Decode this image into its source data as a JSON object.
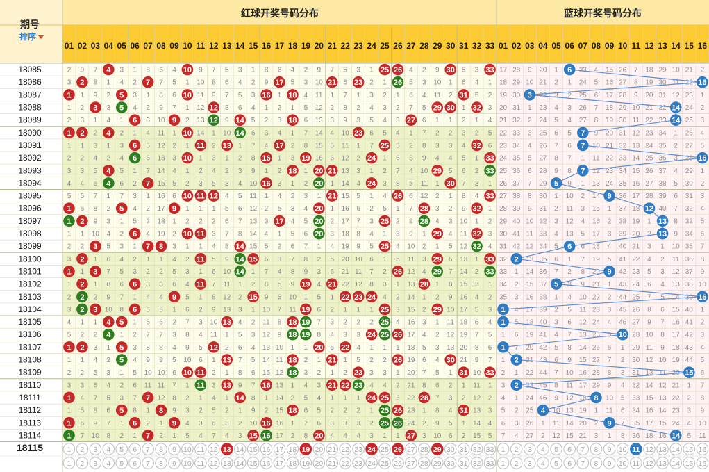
{
  "header": {
    "issue_label": "期号",
    "sort_label": "排序",
    "red_title": "红球开奖号码分布",
    "blue_title": "蓝球开奖号码分布"
  },
  "red_numbers": [
    "01",
    "02",
    "03",
    "04",
    "05",
    "06",
    "07",
    "08",
    "09",
    "10",
    "11",
    "12",
    "13",
    "14",
    "15",
    "16",
    "17",
    "18",
    "19",
    "20",
    "21",
    "22",
    "23",
    "24",
    "25",
    "26",
    "27",
    "28",
    "29",
    "30",
    "31",
    "32",
    "33"
  ],
  "blue_numbers": [
    "01",
    "02",
    "03",
    "04",
    "05",
    "06",
    "07",
    "08",
    "09",
    "10",
    "11",
    "12",
    "13",
    "14",
    "15",
    "16"
  ],
  "colors": {
    "header_bg": "#fde9a3",
    "header_row": "#fccb33",
    "red_ball": "#c62828",
    "green_ball": "#2e7d1e",
    "blue_ball": "#2e7bc4",
    "red_zone_light": "#fdfbea",
    "red_zone_dark": "#eef2c9",
    "blue_zone": "#fff2f2",
    "grid": "#d9d9b8",
    "omit_text": "#8c8c8c"
  },
  "draws": [
    {
      "issue": "18085",
      "red": [
        4,
        10,
        25,
        26,
        30,
        33
      ],
      "blue": 6
    },
    {
      "issue": "18086",
      "red": [
        2,
        7,
        17,
        21,
        23,
        26
      ],
      "blue": 16
    },
    {
      "issue": "18087",
      "red": [
        1,
        5,
        10,
        16,
        18,
        31
      ],
      "blue": 3
    },
    {
      "issue": "18088",
      "red": [
        3,
        5,
        12,
        29,
        30,
        32
      ],
      "blue": 14
    },
    {
      "issue": "18089",
      "red": [
        6,
        9,
        12,
        14,
        18,
        27
      ],
      "blue": 14
    },
    {
      "issue": "18090",
      "red": [
        1,
        2,
        4,
        10,
        14,
        23
      ],
      "blue": 7
    },
    {
      "issue": "18091",
      "red": [
        6,
        11,
        13,
        17,
        25,
        32
      ],
      "blue": 7
    },
    {
      "issue": "18092",
      "red": [
        6,
        10,
        16,
        19,
        24,
        33
      ],
      "blue": 16
    },
    {
      "issue": "18093",
      "red": [
        4,
        18,
        20,
        21,
        29,
        33
      ],
      "blue": 7
    },
    {
      "issue": "18094",
      "red": [
        4,
        7,
        16,
        20,
        24,
        30
      ],
      "blue": 5
    },
    {
      "issue": "18095",
      "red": [
        10,
        11,
        12,
        21,
        26,
        33
      ],
      "blue": 9
    },
    {
      "issue": "18096",
      "red": [
        1,
        5,
        9,
        20,
        28,
        32
      ],
      "blue": 12
    },
    {
      "issue": "18097",
      "red": [
        1,
        2,
        17,
        20,
        25,
        28
      ],
      "blue": 13
    },
    {
      "issue": "18098",
      "red": [
        6,
        10,
        11,
        20,
        29,
        32
      ],
      "blue": 13
    },
    {
      "issue": "18099",
      "red": [
        3,
        7,
        8,
        14,
        25,
        32
      ],
      "blue": 6
    },
    {
      "issue": "18100",
      "red": [
        2,
        11,
        14,
        15,
        29,
        33
      ],
      "blue": 2
    },
    {
      "issue": "18101",
      "red": [
        1,
        3,
        14,
        26,
        29,
        33
      ],
      "blue": 9
    },
    {
      "issue": "18102",
      "red": [
        2,
        6,
        11,
        19,
        21,
        28
      ],
      "blue": 5
    },
    {
      "issue": "18103",
      "red": [
        2,
        9,
        15,
        22,
        23,
        24
      ],
      "blue": 16
    },
    {
      "issue": "18104",
      "red": [
        2,
        3,
        6,
        19,
        25,
        29
      ],
      "blue": 1
    },
    {
      "issue": "18105",
      "red": [
        4,
        5,
        13,
        18,
        19,
        25
      ],
      "blue": 1
    },
    {
      "issue": "18106",
      "red": [
        4,
        18,
        19,
        24,
        25,
        26
      ],
      "blue": 10
    },
    {
      "issue": "18107",
      "red": [
        1,
        2,
        5,
        12,
        20,
        22
      ],
      "blue": 1
    },
    {
      "issue": "18108",
      "red": [
        5,
        13,
        18,
        21,
        26,
        30
      ],
      "blue": 2
    },
    {
      "issue": "18109",
      "red": [
        10,
        11,
        18,
        23,
        31,
        33
      ],
      "blue": 15
    },
    {
      "issue": "18110",
      "red": [
        11,
        13,
        16,
        21,
        22,
        23
      ],
      "blue": 2
    },
    {
      "issue": "18111",
      "red": [
        1,
        7,
        14,
        24,
        25,
        28
      ],
      "blue": 8
    },
    {
      "issue": "18112",
      "red": [
        5,
        8,
        18,
        25,
        26,
        31
      ],
      "blue": 4
    },
    {
      "issue": "18113",
      "red": [
        1,
        6,
        9,
        16,
        25,
        26
      ],
      "blue": 9
    },
    {
      "issue": "18114",
      "red": [
        1,
        7,
        15,
        16,
        20,
        27
      ],
      "blue": 14
    }
  ],
  "next_issue": "18115",
  "selection": {
    "row1_red": [
      13,
      19,
      24,
      26,
      29
    ],
    "row1_blue": [
      11
    ],
    "row2_red": [],
    "row2_blue": []
  }
}
